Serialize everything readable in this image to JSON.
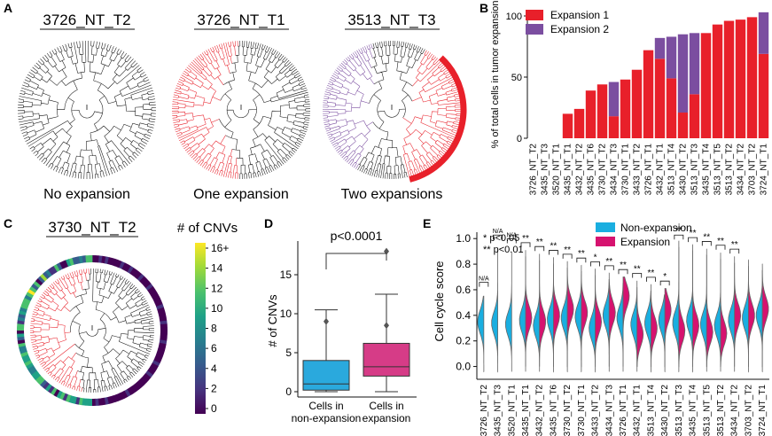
{
  "panels": {
    "A": {
      "label": "A",
      "trees": [
        {
          "title": "3726_NT_T2",
          "caption": "No expansion"
        },
        {
          "title": "3726_NT_T1",
          "caption": "One expansion"
        },
        {
          "title": "3513_NT_T3",
          "caption": "Two expansions"
        }
      ]
    },
    "C": {
      "label": "C",
      "tree_title": "3730_NT_T2",
      "colorbar_title": "# of CNVs",
      "colorbar_ticks": [
        "16+",
        "14",
        "12",
        "10",
        "8",
        "6",
        "4",
        "2",
        "0"
      ]
    }
  },
  "colors": {
    "expansion1": "#e8202a",
    "expansion2": "#7b4ea0",
    "tree_black": "#111111",
    "nonexp_blue": "#1aaee0",
    "exp_magenta": "#d6126f",
    "box_blue": "#2aa9dd",
    "box_magenta": "#d63c87"
  },
  "chart_data": [
    {
      "panel": "B",
      "label": "B",
      "type": "bar",
      "stacked": true,
      "ylabel": "% of total cells in tumor expansion",
      "ylim": [
        0,
        100
      ],
      "yticks": [
        "0",
        "50",
        "100"
      ],
      "legend": [
        "Expansion 1",
        "Expansion 2"
      ],
      "categories": [
        "3726_NT_T2",
        "3435_NT_T3",
        "3520_NT_T1",
        "3435_NT_T1",
        "3432_NT_T2",
        "3435_NT_T6",
        "3730_NT_T2",
        "3434_NT_T3",
        "3730_NT_T1",
        "3433_NT_T2",
        "3726_NT_T1",
        "3432_NT_T1",
        "3513_NT_T4",
        "3430_NT_T2",
        "3513_NT_T3",
        "3435_NT_T4",
        "3513_NT_T5",
        "3513_NT_T2",
        "3434_NT_T2",
        "3703_NT_T2",
        "3724_NT_T1"
      ],
      "series": [
        {
          "name": "Expansion 1",
          "values": [
            0,
            0,
            0,
            20,
            24,
            39,
            44,
            18,
            48,
            56,
            72,
            65,
            49,
            21,
            36,
            86,
            93,
            96,
            97,
            99,
            69
          ]
        },
        {
          "name": "Expansion 2",
          "values": [
            0,
            0,
            0,
            0,
            0,
            0,
            0,
            28,
            0,
            0,
            0,
            17,
            34,
            64,
            50,
            0,
            0,
            0,
            0,
            0,
            34
          ]
        }
      ]
    },
    {
      "panel": "D",
      "label": "D",
      "type": "box",
      "ylabel": "# of CNVs",
      "ylim": [
        0,
        20
      ],
      "yticks": [
        "0",
        "5",
        "10",
        "15"
      ],
      "pvalue": "p<0.0001",
      "categories": [
        "Cells in non-expansion",
        "Cells in expansion"
      ],
      "category_lines": [
        [
          "Cells in",
          "non-expansion"
        ],
        [
          "Cells in",
          "expansion"
        ]
      ],
      "boxes": [
        {
          "name": "Cells in non-expansion",
          "min": 0,
          "q1": 0.2,
          "median": 1,
          "q3": 4,
          "max": 10.5,
          "outliers": [
            9
          ]
        },
        {
          "name": "Cells in expansion",
          "min": 0,
          "q1": 2,
          "median": 3.2,
          "q3": 6.2,
          "max": 12.5,
          "outliers": [
            8.5,
            18
          ]
        }
      ]
    },
    {
      "panel": "E",
      "label": "E",
      "type": "split-violin",
      "ylabel": "Cell cycle score",
      "ylim": [
        -0.1,
        1.05
      ],
      "yticks": [
        "0.0",
        "0.2",
        "0.4",
        "0.6",
        "0.8",
        "1.0"
      ],
      "legend": [
        "Non-expansion",
        "Expansion"
      ],
      "sig_legend": [
        "*  p<0.05",
        "** p<0.01"
      ],
      "categories": [
        "3726_NT_T2",
        "3435_NT_T3",
        "3520_NT_T1",
        "3435_NT_T1",
        "3432_NT_T2",
        "3435_NT_T6",
        "3730_NT_T2",
        "3730_NT_T1",
        "3433_NT_T2",
        "3434_NT_T3",
        "3726_NT_T1",
        "3432_NT_T1",
        "3513_NT_T4",
        "3430_NT_T2",
        "3513_NT_T3",
        "3435_NT_T4",
        "3513_NT_T5",
        "3513_NT_T2",
        "3434_NT_T2",
        "3703_NT_T2",
        "3724_NT_T1"
      ],
      "significance": [
        "N/A",
        "N/A",
        "N/A",
        "**",
        "**",
        "**",
        "**",
        "**",
        "*",
        "**",
        "**",
        "**",
        "**",
        "*",
        "**",
        "**",
        "**",
        "**",
        "**",
        "",
        ""
      ],
      "nonexp_median": [
        0.35,
        0.34,
        0.33,
        0.36,
        0.32,
        0.37,
        0.38,
        0.39,
        0.3,
        0.4,
        0.38,
        0.33,
        0.34,
        0.36,
        0.34,
        0.36,
        0.33,
        0.32,
        0.36,
        0.38,
        0.4
      ],
      "exp_median": [
        null,
        null,
        null,
        0.38,
        0.35,
        0.4,
        0.45,
        0.42,
        0.35,
        0.42,
        0.55,
        0.25,
        0.3,
        0.44,
        0.28,
        0.32,
        0.27,
        0.26,
        0.4,
        0.4,
        0.45
      ]
    }
  ]
}
